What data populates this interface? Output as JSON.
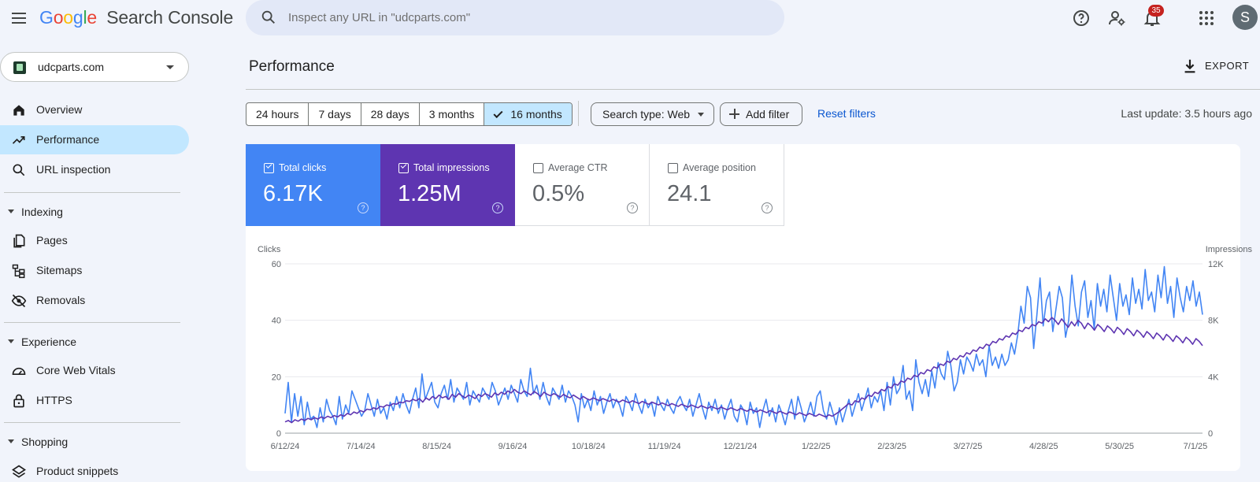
{
  "app": {
    "logo_letters": [
      "G",
      "o",
      "o",
      "g",
      "l",
      "e"
    ],
    "product": "Search Console",
    "search_placeholder": "Inspect any URL in \"udcparts.com\"",
    "notifications_count": "35",
    "avatar_letter": "S"
  },
  "sidebar": {
    "property": "udcparts.com",
    "items": [
      {
        "label": "Overview",
        "icon": "home-icon"
      },
      {
        "label": "Performance",
        "icon": "trending-up-icon",
        "active": true
      },
      {
        "label": "URL inspection",
        "icon": "search-icon"
      }
    ],
    "sections": [
      {
        "label": "Indexing",
        "items": [
          {
            "label": "Pages",
            "icon": "pages-icon"
          },
          {
            "label": "Sitemaps",
            "icon": "sitemap-icon"
          },
          {
            "label": "Removals",
            "icon": "eye-off-icon"
          }
        ]
      },
      {
        "label": "Experience",
        "items": [
          {
            "label": "Core Web Vitals",
            "icon": "speedometer-icon"
          },
          {
            "label": "HTTPS",
            "icon": "lock-icon"
          }
        ]
      },
      {
        "label": "Shopping",
        "items": [
          {
            "label": "Product snippets",
            "icon": "layers-icon"
          }
        ]
      }
    ]
  },
  "main": {
    "title": "Performance",
    "export_label": "EXPORT",
    "date_ranges": [
      "24 hours",
      "7 days",
      "28 days",
      "3 months",
      "16 months"
    ],
    "selected_range": "16 months",
    "search_type": "Search type: Web",
    "add_filter": "Add filter",
    "reset_filters": "Reset filters",
    "last_update": "Last update: 3.5 hours ago",
    "metrics": [
      {
        "label": "Total clicks",
        "value": "6.17K",
        "checked": true,
        "color": "#4285f4"
      },
      {
        "label": "Total impressions",
        "value": "1.25M",
        "checked": true,
        "color": "#5e35b1"
      },
      {
        "label": "Average CTR",
        "value": "0.5%",
        "checked": false
      },
      {
        "label": "Average position",
        "value": "24.1",
        "checked": false
      }
    ]
  },
  "chart_data": {
    "type": "line",
    "left_axis_label": "Clicks",
    "right_axis_label": "Impressions",
    "left_ylim": [
      0,
      60
    ],
    "left_ticks": [
      "0",
      "20",
      "40",
      "60"
    ],
    "right_ylim": [
      0,
      12000
    ],
    "right_ticks": [
      "0",
      "4K",
      "8K",
      "12K"
    ],
    "x_tick_labels": [
      "6/12/24",
      "7/14/24",
      "8/15/24",
      "9/16/24",
      "10/18/24",
      "11/19/24",
      "12/21/24",
      "1/22/25",
      "2/23/25",
      "3/27/25",
      "4/28/25",
      "5/30/25",
      "7/1/25"
    ],
    "x_start": "2024-06-12",
    "x_end": "2025-07-04",
    "grid": true,
    "series": [
      {
        "name": "Total clicks",
        "axis": "left",
        "color": "#4285f4",
        "values": [
          7,
          18,
          4,
          14,
          6,
          13,
          3,
          11,
          5,
          6,
          2,
          9,
          4,
          12,
          8,
          6,
          3,
          13,
          5,
          10,
          7,
          15,
          12,
          9,
          6,
          8,
          14,
          10,
          6,
          12,
          7,
          9,
          5,
          11,
          8,
          13,
          9,
          14,
          10,
          7,
          12,
          16,
          9,
          21,
          12,
          15,
          18,
          11,
          9,
          14,
          17,
          12,
          19,
          11,
          16,
          14,
          12,
          18,
          10,
          15,
          13,
          11,
          16,
          14,
          12,
          18,
          15,
          10,
          13,
          16,
          12,
          17,
          14,
          11,
          19,
          15,
          13,
          23,
          14,
          17,
          12,
          18,
          13,
          10,
          16,
          14,
          12,
          17,
          11,
          15,
          13,
          10,
          4,
          14,
          9,
          12,
          8,
          15,
          10,
          13,
          7,
          11,
          14,
          9,
          12,
          10,
          6,
          13,
          11,
          8,
          14,
          10,
          7,
          12,
          9,
          11,
          6,
          13,
          10,
          8,
          12,
          9,
          7,
          11,
          13,
          10,
          8,
          12,
          6,
          10,
          14,
          9,
          5,
          11,
          8,
          12,
          7,
          10,
          5,
          9,
          12,
          6,
          4,
          10,
          8,
          3,
          11,
          7,
          9,
          2,
          8,
          12,
          6,
          9,
          4,
          10,
          7,
          3,
          8,
          12,
          5,
          13,
          9,
          4,
          7,
          11,
          6,
          13,
          15,
          8,
          5,
          11,
          7,
          3,
          9,
          4,
          8,
          12,
          6,
          10,
          14,
          8,
          12,
          16,
          9,
          13,
          11,
          15,
          8,
          18,
          10,
          20,
          14,
          16,
          24,
          12,
          15,
          8,
          26,
          18,
          14,
          19,
          13,
          22,
          16,
          25,
          21,
          19,
          29,
          24,
          15,
          18,
          26,
          21,
          27,
          25,
          22,
          28,
          24,
          26,
          20,
          31,
          24,
          27,
          23,
          28,
          24,
          26,
          32,
          28,
          35,
          45,
          39,
          52,
          48,
          30,
          42,
          55,
          38,
          47,
          50,
          36,
          44,
          52,
          48,
          34,
          40,
          56,
          45,
          38,
          50,
          54,
          41,
          47,
          37,
          53,
          45,
          51,
          43,
          56,
          48,
          40,
          53,
          45,
          49,
          42,
          55,
          46,
          51,
          44,
          58,
          47,
          50,
          43,
          56,
          48,
          59,
          46,
          52,
          41,
          55,
          48,
          43,
          52,
          47,
          54,
          45,
          50,
          42
        ]
      },
      {
        "name": "Total impressions",
        "axis": "right",
        "color": "#5e35b1",
        "values": [
          800,
          900,
          750,
          950,
          850,
          1000,
          900,
          1050,
          950,
          1100,
          1000,
          1150,
          1050,
          1200,
          1100,
          1250,
          1150,
          1300,
          1200,
          1400,
          1300,
          1500,
          1400,
          1600,
          1500,
          1700,
          1650,
          1800,
          1700,
          1900,
          1850,
          2000,
          1950,
          2100,
          2050,
          2200,
          2150,
          2300,
          2250,
          2400,
          2300,
          2450,
          2200,
          2500,
          2350,
          2600,
          2450,
          2700,
          2500,
          2600,
          2400,
          2750,
          2550,
          2800,
          2650,
          2500,
          2700,
          2600,
          2450,
          2750,
          2600,
          2800,
          2700,
          2550,
          2850,
          2700,
          2900,
          2750,
          3000,
          2850,
          3100,
          2900,
          2800,
          3000,
          2850,
          2700,
          2950,
          2800,
          2600,
          2900,
          2750,
          2650,
          2800,
          2700,
          2550,
          2750,
          2600,
          2500,
          2700,
          2550,
          2400,
          2600,
          2450,
          2350,
          2500,
          2400,
          2300,
          2450,
          2350,
          2250,
          2400,
          2300,
          2200,
          2350,
          2250,
          2150,
          2300,
          2200,
          2100,
          2250,
          2150,
          2050,
          2200,
          2100,
          2000,
          2150,
          2050,
          1950,
          2100,
          2000,
          1900,
          2050,
          1950,
          1850,
          2000,
          1900,
          1800,
          1950,
          1850,
          1750,
          1900,
          1800,
          1700,
          1850,
          1750,
          1650,
          1800,
          1700,
          1600,
          1750,
          1650,
          1550,
          1700,
          1600,
          1500,
          1650,
          1550,
          1450,
          1600,
          1500,
          1400,
          1550,
          1450,
          1350,
          1500,
          1400,
          1300,
          1450,
          1350,
          1250,
          1400,
          1300,
          1200,
          1350,
          1250,
          1150,
          1300,
          1200,
          1350,
          1500,
          1700,
          1900,
          2100,
          2000,
          2300,
          2200,
          2500,
          2400,
          2700,
          2600,
          2900,
          2800,
          3100,
          3000,
          3300,
          3200,
          3500,
          3400,
          3700,
          3600,
          3900,
          3800,
          4100,
          4000,
          4300,
          4200,
          4500,
          4400,
          4700,
          4600,
          4900,
          4800,
          5100,
          5000,
          5300,
          5200,
          5500,
          5400,
          5700,
          5600,
          5900,
          5800,
          6100,
          6000,
          6300,
          6200,
          6500,
          6400,
          6700,
          6600,
          6900,
          6800,
          7100,
          7000,
          7300,
          7200,
          7500,
          7400,
          7700,
          7600,
          7900,
          7800,
          8100,
          7900,
          8200,
          8000,
          7700,
          8100,
          7800,
          7500,
          7900,
          7600,
          8000,
          7800,
          7400,
          7800,
          7600,
          7300,
          7700,
          7500,
          7200,
          7600,
          7400,
          7100,
          7500,
          7300,
          7000,
          7400,
          7200,
          6900,
          7300,
          7100,
          6800,
          7200,
          7000,
          6700,
          7100,
          6900,
          6600,
          7000,
          6800,
          6500,
          6900,
          6700,
          6400,
          6800,
          6600,
          6300,
          6700,
          6500,
          6200
        ]
      }
    ]
  }
}
